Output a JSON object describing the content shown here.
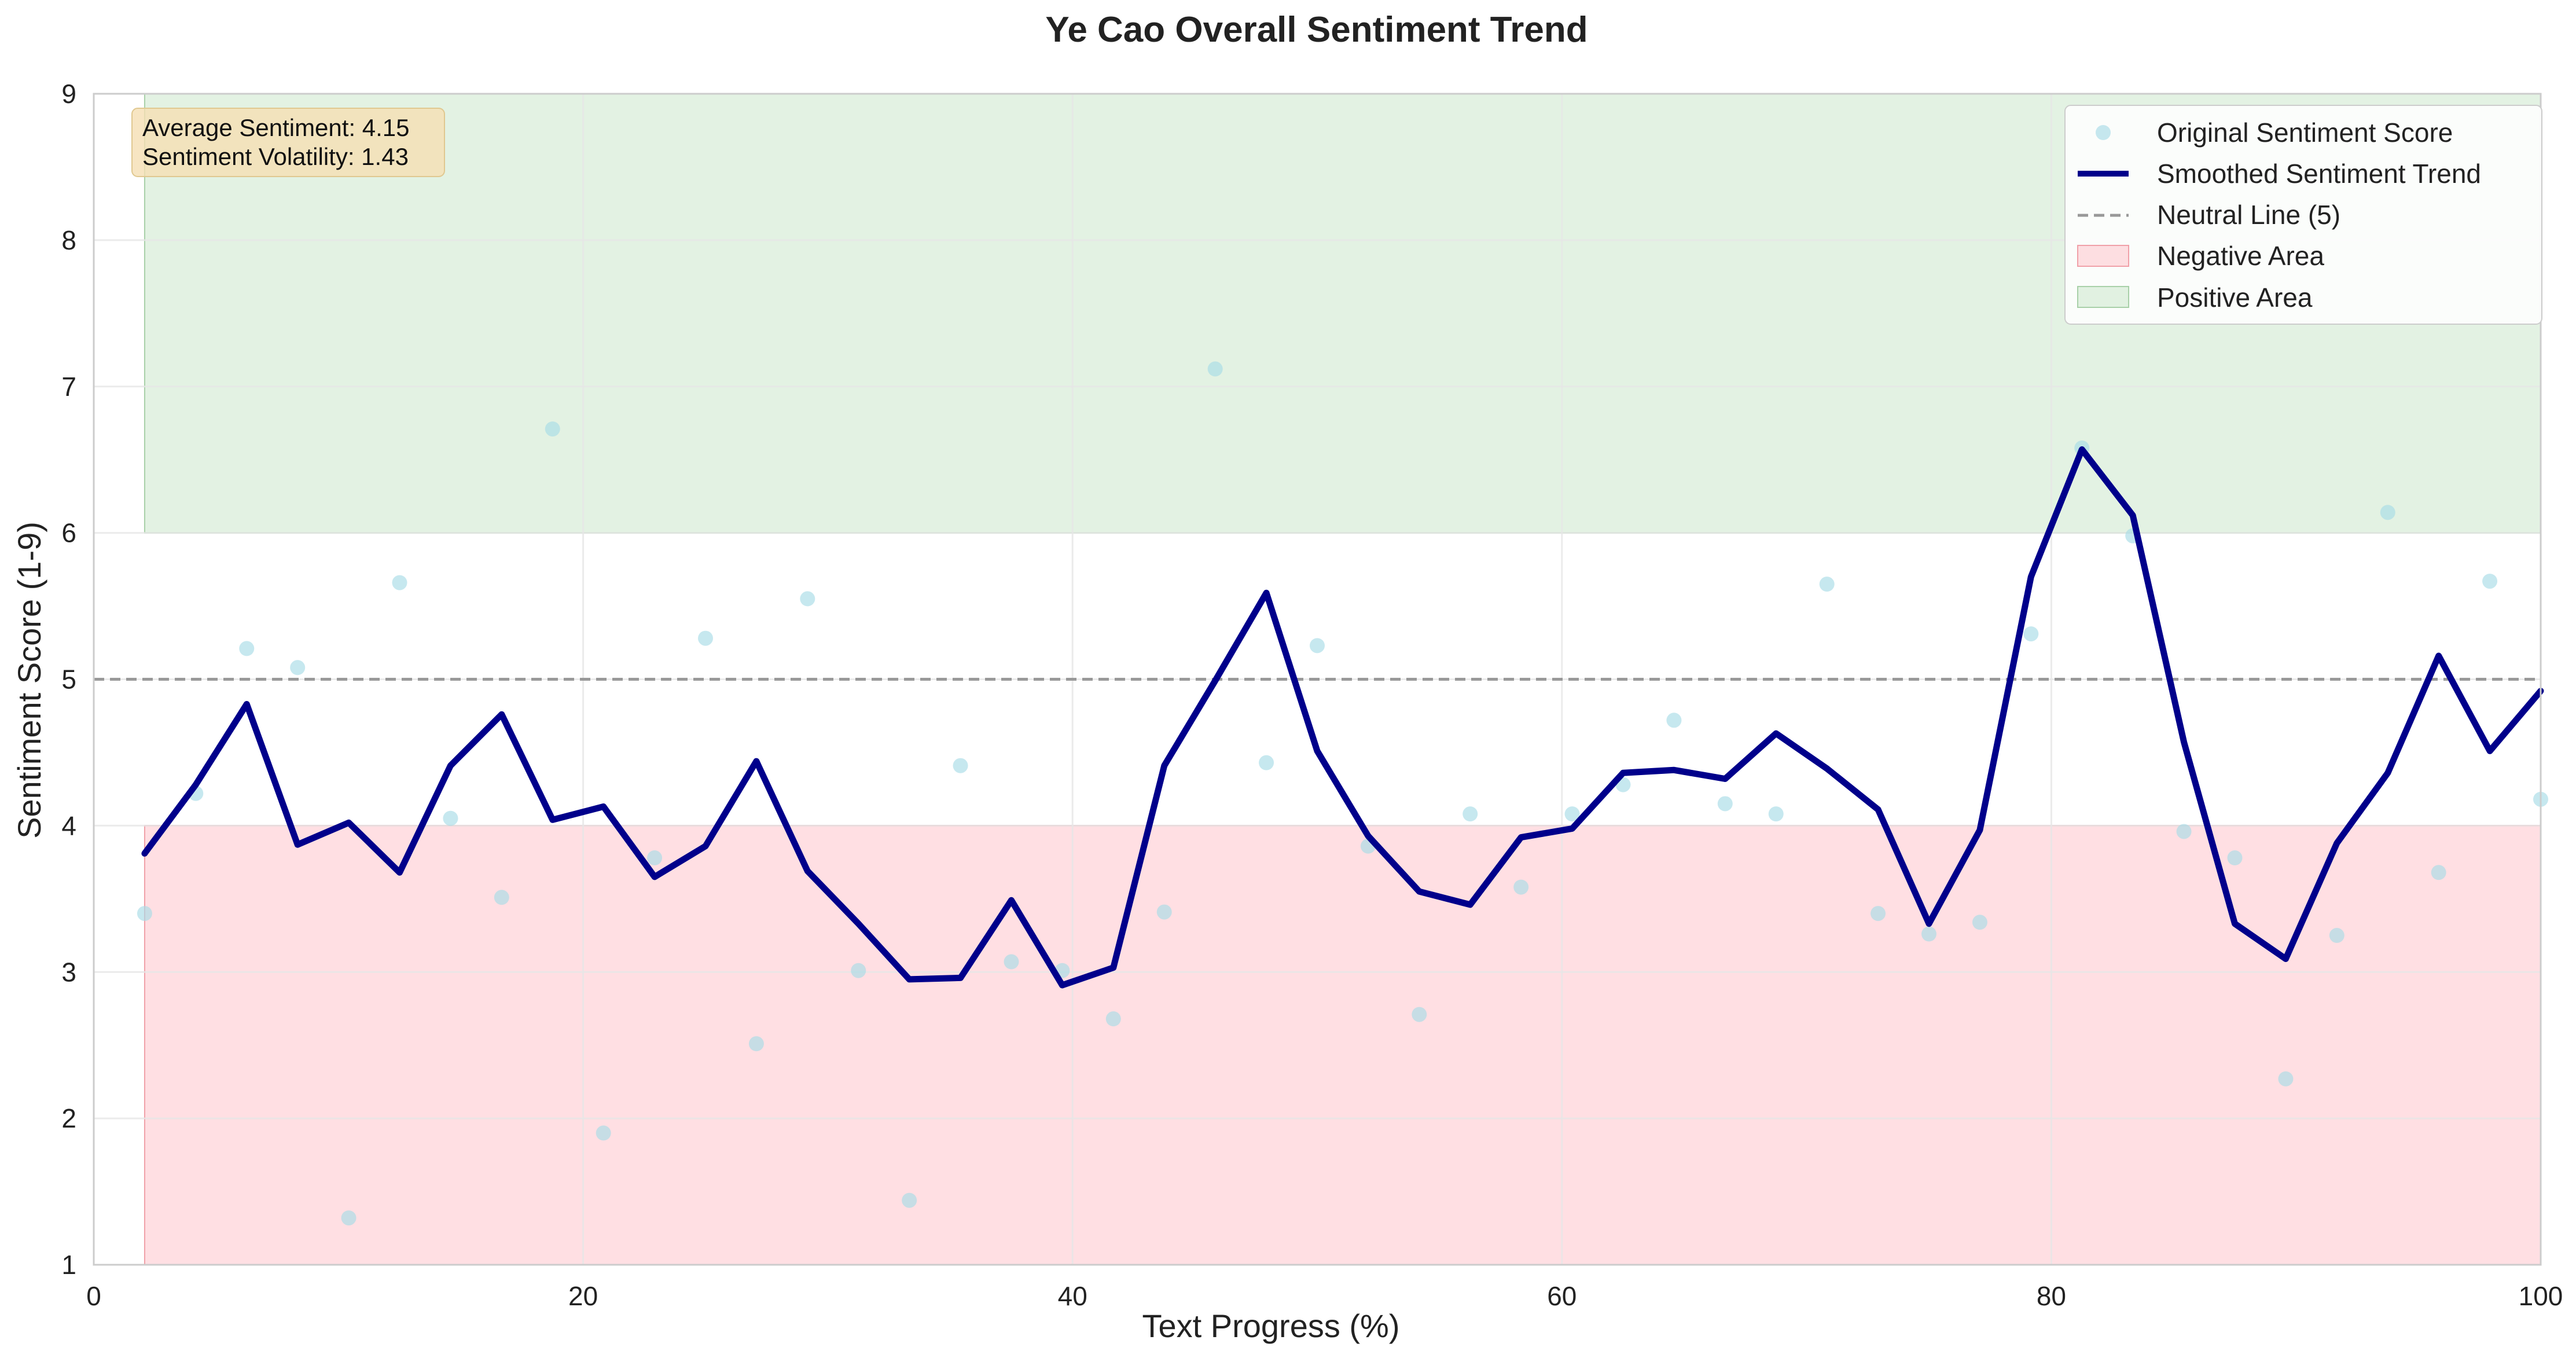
{
  "colors": {
    "points": "#a8dbe6",
    "smooth": "#00008b",
    "neutral": "#999999",
    "negative_fill": "#ffc0c8",
    "positive_fill": "#c8e6c8",
    "grid": "#e6e6e6",
    "stats_box": "#f5deb3"
  },
  "chart_data": {
    "type": "line",
    "title": "Ye Cao Overall Sentiment Trend",
    "xlabel": "Text Progress (%)",
    "ylabel": "Sentiment Score (1-9)",
    "xlim": [
      0,
      100
    ],
    "ylim": [
      1,
      9
    ],
    "xticks": [
      0,
      20,
      40,
      60,
      80,
      100
    ],
    "yticks": [
      1,
      2,
      3,
      4,
      5,
      6,
      7,
      8,
      9
    ],
    "grid": true,
    "legend_position": "top-right",
    "stats": [
      "Average Sentiment: 4.15",
      "Sentiment Volatility: 1.43"
    ],
    "neutral_line": 5,
    "negative_area": {
      "x": [
        2.08,
        100
      ],
      "y": [
        1,
        4
      ]
    },
    "positive_area": {
      "x": [
        2.08,
        100
      ],
      "y": [
        6,
        9
      ]
    },
    "series": [
      {
        "name": "Original Sentiment Score",
        "kind": "scatter",
        "x": [
          2.08,
          4.17,
          6.25,
          8.33,
          10.42,
          12.5,
          14.58,
          16.67,
          18.75,
          20.83,
          22.92,
          25.0,
          27.08,
          29.17,
          31.25,
          33.33,
          35.42,
          37.5,
          39.58,
          41.67,
          43.75,
          45.83,
          47.92,
          50.0,
          52.08,
          54.17,
          56.25,
          58.33,
          60.42,
          62.5,
          64.58,
          66.67,
          68.75,
          70.83,
          72.92,
          75.0,
          77.08,
          79.17,
          81.25,
          83.33,
          85.42,
          87.5,
          89.58,
          91.67,
          93.75,
          95.83,
          97.92,
          100.0
        ],
        "y": [
          3.4,
          4.22,
          5.21,
          5.08,
          1.32,
          5.66,
          4.05,
          3.51,
          6.71,
          1.9,
          3.78,
          5.28,
          2.51,
          5.55,
          3.01,
          1.44,
          4.41,
          3.07,
          3.01,
          2.68,
          3.41,
          7.12,
          4.43,
          5.23,
          3.86,
          2.71,
          4.08,
          3.58,
          4.08,
          4.28,
          4.72,
          4.15,
          4.08,
          5.65,
          3.4,
          3.26,
          3.34,
          5.31,
          6.58,
          5.98,
          3.96,
          3.78,
          2.27,
          3.25,
          6.14,
          3.68,
          5.67,
          4.18
        ]
      },
      {
        "name": "Smoothed Sentiment Trend",
        "kind": "line",
        "x": [
          2.08,
          4.17,
          6.25,
          8.33,
          10.42,
          12.5,
          14.58,
          16.67,
          18.75,
          20.83,
          22.92,
          25.0,
          27.08,
          29.17,
          31.25,
          33.33,
          35.42,
          37.5,
          39.58,
          41.67,
          43.75,
          45.83,
          47.92,
          50.0,
          52.08,
          54.17,
          56.25,
          58.33,
          60.42,
          62.5,
          64.58,
          66.67,
          68.75,
          70.83,
          72.92,
          75.0,
          77.08,
          79.17,
          81.25,
          83.33,
          85.42,
          87.5,
          89.58,
          91.67,
          93.75,
          95.83,
          97.92,
          100.0
        ],
        "y": [
          3.81,
          4.28,
          4.83,
          3.87,
          4.02,
          3.68,
          4.41,
          4.76,
          4.04,
          4.13,
          3.65,
          3.86,
          4.44,
          3.69,
          3.33,
          2.95,
          2.96,
          3.49,
          2.91,
          3.03,
          4.41,
          4.99,
          5.59,
          4.51,
          3.93,
          3.55,
          3.46,
          3.92,
          3.98,
          4.36,
          4.38,
          4.32,
          4.63,
          4.39,
          4.11,
          3.33,
          3.97,
          5.7,
          6.57,
          6.12,
          4.57,
          3.33,
          3.09,
          3.88,
          4.36,
          5.16,
          4.51,
          4.92
        ]
      },
      {
        "name": "Neutral Line (5)",
        "kind": "hline"
      },
      {
        "name": "Negative Area",
        "kind": "band"
      },
      {
        "name": "Positive Area",
        "kind": "band"
      }
    ]
  }
}
